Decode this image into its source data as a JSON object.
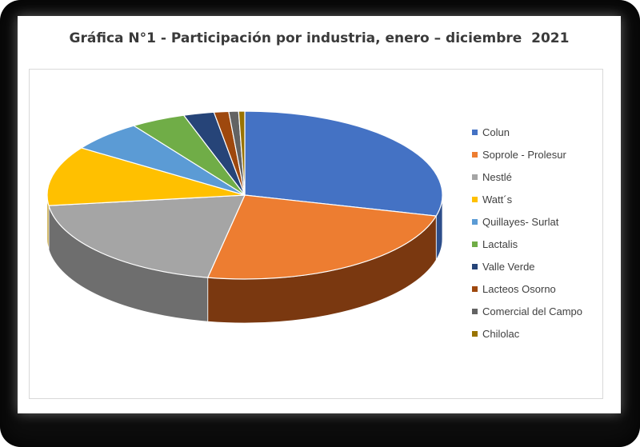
{
  "chart_data": {
    "type": "pie",
    "style": "3d",
    "title": "Gráfica N°1 - Participación por industria, enero – diciembre  2021",
    "legend_position": "right",
    "slices": [
      {
        "label": "Colun",
        "value": 29.0,
        "color": "#4472C4",
        "side": "#2D4E8A"
      },
      {
        "label": "Soprole - Prolesur",
        "value": 24.0,
        "color": "#ED7D31",
        "side": "#7A3810"
      },
      {
        "label": "Nestlé",
        "value": 20.0,
        "color": "#A5A5A5",
        "side": "#6E6E6E"
      },
      {
        "label": "Watt´s",
        "value": 11.5,
        "color": "#FFC000",
        "side": "#B58900"
      },
      {
        "label": "Quillayes- Surlat",
        "value": 6.0,
        "color": "#5B9BD5",
        "side": "#3B6B96"
      },
      {
        "label": "Lactalis",
        "value": 4.5,
        "color": "#70AD47",
        "side": "#4A7A2C"
      },
      {
        "label": "Valle Verde",
        "value": 2.5,
        "color": "#264478",
        "side": "#15284A"
      },
      {
        "label": "Lacteos Osorno",
        "value": 1.2,
        "color": "#9E480E",
        "side": "#5E2A08"
      },
      {
        "label": "Comercial del Campo",
        "value": 0.8,
        "color": "#636363",
        "side": "#3C3C3C"
      },
      {
        "label": "Chilolac",
        "value": 0.5,
        "color": "#997300",
        "side": "#5E4700"
      }
    ]
  }
}
